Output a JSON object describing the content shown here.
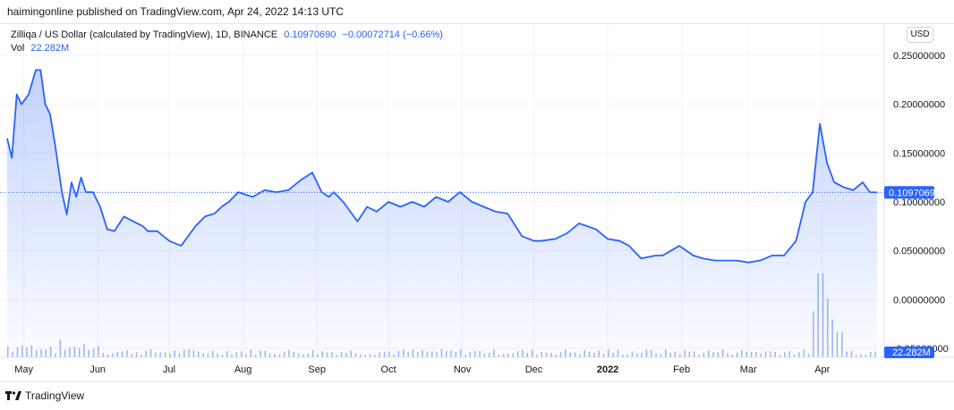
{
  "header": {
    "published": "haimingonline published on TradingView.com, Apr 24, 2022 14:13 UTC"
  },
  "legend": {
    "symbol": "Zilliqa / US Dollar (calculated by TradingView), 1D, BINANCE",
    "last": "0.10970690",
    "change": "−0.00072714 (−0.66%)",
    "vol_label": "Vol",
    "vol_value": "22.282M"
  },
  "currency_button": "USD",
  "footer": {
    "brand": "TradingView",
    "logo_icon": "tradingview-logo-icon"
  },
  "colors": {
    "line": "#2962ff",
    "area": "#2962ff",
    "volume": "#9db5f5",
    "last_label_bg": "#2962ff"
  },
  "chart_data": {
    "type": "area",
    "y_ticks": [
      "0.25000000",
      "0.20000000",
      "0.15000000",
      "0.10000000",
      "0.05000000",
      "0.00000000",
      "-0.05000000"
    ],
    "ylim": [
      -0.05,
      0.25
    ],
    "last_price_label": "0.10970690",
    "volume_label": "22.282M",
    "x_tick_labels": [
      "May",
      "Jun",
      "Jul",
      "Aug",
      "Sep",
      "Oct",
      "Nov",
      "Dec",
      "2022",
      "Feb",
      "Mar",
      "Apr"
    ],
    "x_ticks_dates": [
      "2021-05-01",
      "2021-06-01",
      "2021-07-01",
      "2021-08-01",
      "2021-09-01",
      "2021-10-01",
      "2021-11-01",
      "2021-12-01",
      "2022-01-01",
      "2022-02-01",
      "2022-03-01",
      "2022-04-01"
    ],
    "x_range": [
      "2021-04-24",
      "2022-04-24"
    ],
    "series": [
      {
        "x": [
          "2021-04-24",
          "2021-04-26",
          "2021-04-28",
          "2021-04-30",
          "2021-05-03",
          "2021-05-06",
          "2021-05-08",
          "2021-05-10",
          "2021-05-12",
          "2021-05-14",
          "2021-05-17",
          "2021-05-19",
          "2021-05-21",
          "2021-05-23",
          "2021-05-25",
          "2021-05-27",
          "2021-05-30",
          "2021-06-02",
          "2021-06-05",
          "2021-06-08",
          "2021-06-12",
          "2021-06-16",
          "2021-06-20",
          "2021-06-22",
          "2021-06-26",
          "2021-07-01",
          "2021-07-06",
          "2021-07-12",
          "2021-07-16",
          "2021-07-20",
          "2021-07-23",
          "2021-07-26",
          "2021-07-30",
          "2021-08-05",
          "2021-08-10",
          "2021-08-15",
          "2021-08-20",
          "2021-08-25",
          "2021-08-30",
          "2021-09-03",
          "2021-09-06",
          "2021-09-08",
          "2021-09-12",
          "2021-09-18",
          "2021-09-22",
          "2021-09-26",
          "2021-10-01",
          "2021-10-06",
          "2021-10-11",
          "2021-10-16",
          "2021-10-21",
          "2021-10-26",
          "2021-10-31",
          "2021-11-05",
          "2021-11-10",
          "2021-11-15",
          "2021-11-20",
          "2021-11-26",
          "2021-12-01",
          "2021-12-04",
          "2021-12-10",
          "2021-12-15",
          "2021-12-20",
          "2021-12-27",
          "2022-01-01",
          "2022-01-06",
          "2022-01-10",
          "2022-01-15",
          "2022-01-21",
          "2022-01-24",
          "2022-01-31",
          "2022-02-06",
          "2022-02-10",
          "2022-02-15",
          "2022-02-20",
          "2022-02-24",
          "2022-03-01",
          "2022-03-06",
          "2022-03-11",
          "2022-03-16",
          "2022-03-21",
          "2022-03-25",
          "2022-03-28",
          "2022-03-31",
          "2022-04-03",
          "2022-04-06",
          "2022-04-10",
          "2022-04-14",
          "2022-04-18",
          "2022-04-21",
          "2022-04-24"
        ],
        "values": [
          0.165,
          0.145,
          0.21,
          0.2,
          0.21,
          0.235,
          0.235,
          0.2,
          0.19,
          0.16,
          0.11,
          0.087,
          0.12,
          0.105,
          0.125,
          0.11,
          0.11,
          0.095,
          0.072,
          0.07,
          0.085,
          0.08,
          0.075,
          0.07,
          0.07,
          0.06,
          0.055,
          0.075,
          0.085,
          0.088,
          0.095,
          0.1,
          0.11,
          0.105,
          0.112,
          0.11,
          0.112,
          0.122,
          0.13,
          0.11,
          0.105,
          0.11,
          0.1,
          0.08,
          0.095,
          0.09,
          0.1,
          0.095,
          0.1,
          0.095,
          0.105,
          0.1,
          0.11,
          0.1,
          0.095,
          0.09,
          0.088,
          0.065,
          0.06,
          0.06,
          0.062,
          0.068,
          0.078,
          0.072,
          0.062,
          0.06,
          0.055,
          0.042,
          0.045,
          0.045,
          0.055,
          0.045,
          0.042,
          0.04,
          0.04,
          0.04,
          0.038,
          0.04,
          0.045,
          0.045,
          0.06,
          0.1,
          0.11,
          0.18,
          0.14,
          0.12,
          0.115,
          0.112,
          0.12,
          0.11,
          0.1097
        ]
      }
    ],
    "volume": {
      "spikes": [
        {
          "x": "2022-03-31",
          "v": 1.0
        },
        {
          "x": "2022-04-02",
          "v": 0.7
        },
        {
          "x": "2022-03-29",
          "v": 0.55
        },
        {
          "x": "2022-04-05",
          "v": 0.45
        },
        {
          "x": "2022-04-08",
          "v": 0.3
        }
      ],
      "baseline": 0.08
    }
  }
}
